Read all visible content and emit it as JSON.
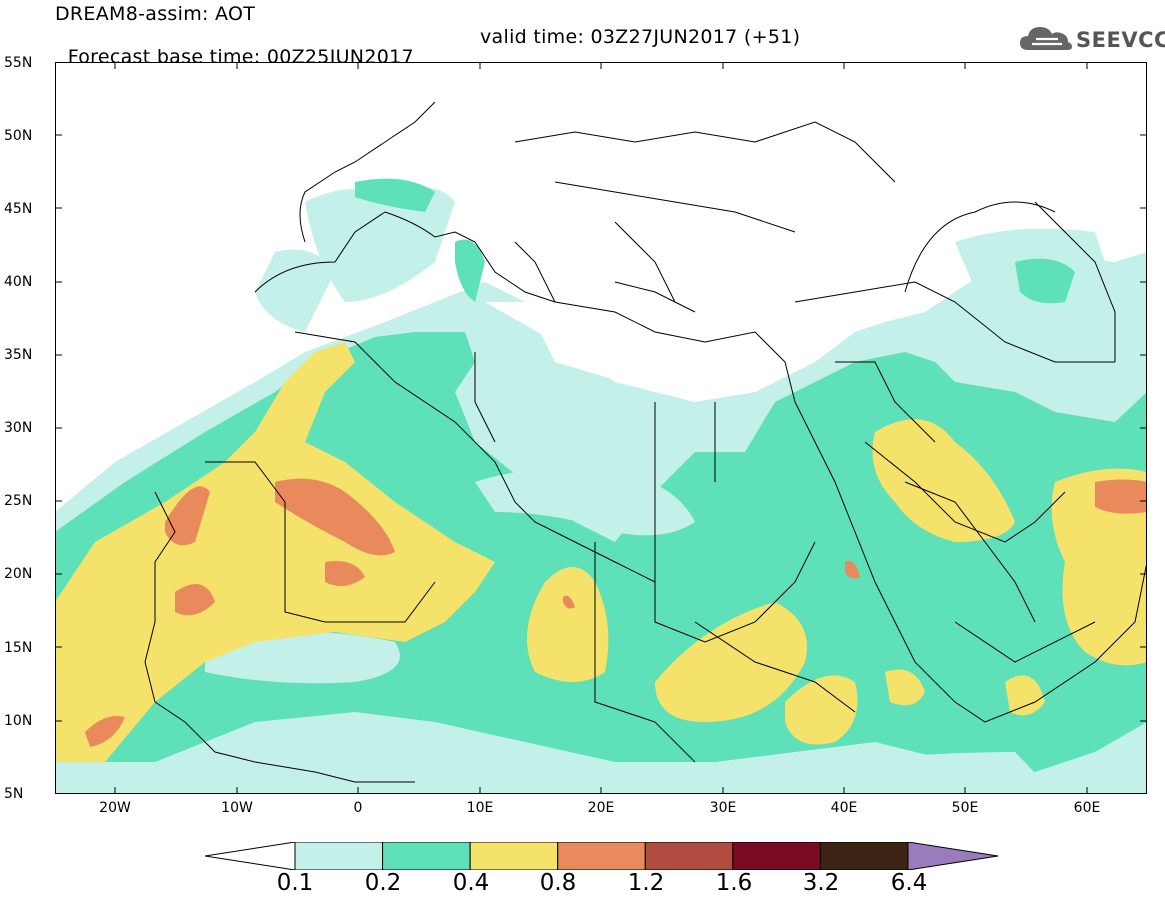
{
  "header": {
    "line1": "DREAM8-assim: AOT",
    "line2": "Forecast base time: 00Z25JUN2017",
    "valid": "valid time: 03Z27JUN2017 (+51)"
  },
  "logo": {
    "text": "SEEVCCC",
    "icon": "cloud-logo-icon",
    "color": "#555555"
  },
  "axes": {
    "lat_labels": [
      "55N",
      "50N",
      "45N",
      "40N",
      "35N",
      "30N",
      "25N",
      "20N",
      "15N",
      "10N",
      "5N"
    ],
    "lon_labels": [
      "20W",
      "10W",
      "0",
      "10E",
      "20E",
      "30E",
      "40E",
      "50E",
      "60E"
    ]
  },
  "colorbar": {
    "colors": [
      "#c4f0ea",
      "#5ee0b8",
      "#f5e26b",
      "#e98a5c",
      "#b04d40",
      "#7a0b25",
      "#3d2313"
    ],
    "under_color": "#ffffff",
    "over_color": "#9a7bbd",
    "labels": [
      "0.1",
      "0.2",
      "0.4",
      "0.8",
      "1.2",
      "1.6",
      "3.2",
      "6.4"
    ]
  }
}
